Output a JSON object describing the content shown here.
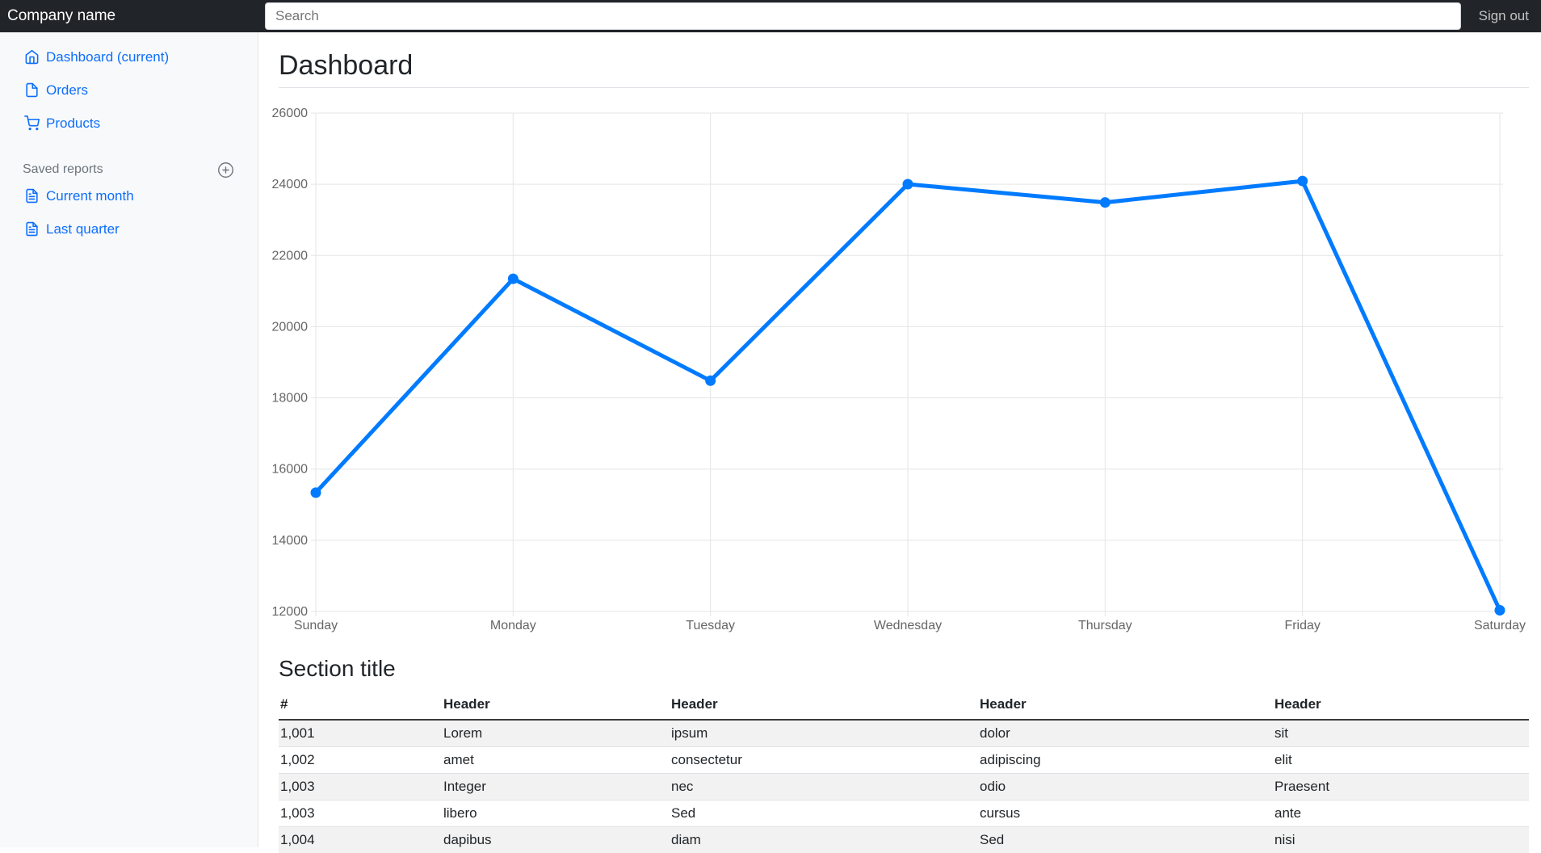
{
  "navbar": {
    "brand": "Company name",
    "search_placeholder": "Search",
    "sign_out_label": "Sign out"
  },
  "sidebar": {
    "items": [
      {
        "label": "Dashboard (current)",
        "icon": "home-icon",
        "active": true
      },
      {
        "label": "Orders",
        "icon": "file-icon",
        "active": false
      },
      {
        "label": "Products",
        "icon": "shopping-cart-icon",
        "active": false
      }
    ],
    "saved_reports_heading": "Saved reports",
    "add_report_icon": "plus-circle-icon",
    "reports": [
      {
        "label": "Current month",
        "icon": "file-text-icon"
      },
      {
        "label": "Last quarter",
        "icon": "file-text-icon"
      }
    ]
  },
  "main": {
    "page_title": "Dashboard",
    "section_title": "Section title"
  },
  "chart_data": {
    "type": "line",
    "categories": [
      "Sunday",
      "Monday",
      "Tuesday",
      "Wednesday",
      "Thursday",
      "Friday",
      "Saturday"
    ],
    "values": [
      15339,
      21345,
      18483,
      24003,
      23489,
      24092,
      12034
    ],
    "title": "",
    "xlabel": "",
    "ylabel": "",
    "ylim": [
      12000,
      26000
    ],
    "ytick_step": 2000,
    "grid": true,
    "legend": false,
    "line_color": "#007bff",
    "point_color": "#007bff",
    "grid_color": "#e5e5e5",
    "tick_color": "#666666"
  },
  "table": {
    "headers": [
      "#",
      "Header",
      "Header",
      "Header",
      "Header"
    ],
    "rows": [
      [
        "1,001",
        "Lorem",
        "ipsum",
        "dolor",
        "sit"
      ],
      [
        "1,002",
        "amet",
        "consectetur",
        "adipiscing",
        "elit"
      ],
      [
        "1,003",
        "Integer",
        "nec",
        "odio",
        "Praesent"
      ],
      [
        "1,003",
        "libero",
        "Sed",
        "cursus",
        "ante"
      ],
      [
        "1,004",
        "dapibus",
        "diam",
        "Sed",
        "nisi"
      ]
    ]
  },
  "colors": {
    "navbar_bg": "#212529",
    "sidebar_bg": "#f8f9fa",
    "link_blue": "#0d6efd",
    "chart_line": "#007bff",
    "muted": "#6c757d",
    "stripe": "#f2f2f2",
    "border": "#dee2e6"
  }
}
